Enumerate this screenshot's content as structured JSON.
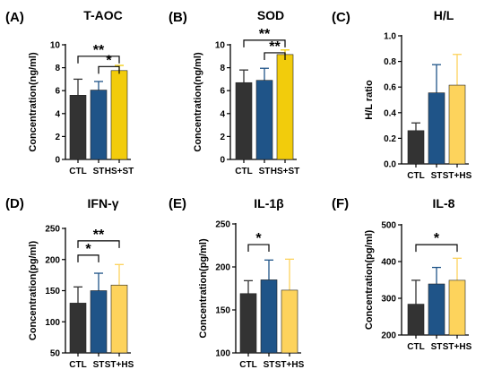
{
  "chart_data": [
    {
      "type": "bar",
      "panel": "(A)",
      "title": "T-AOC",
      "ylabel": "Concentration(ng/ml)",
      "categories": [
        "CTL",
        "ST",
        "HS+ST"
      ],
      "values": [
        5.6,
        6.05,
        7.75
      ],
      "errors": [
        1.4,
        0.75,
        0.45
      ],
      "colors": [
        "#333333",
        "#1f5488",
        "#f2cc0c"
      ],
      "ylim": [
        0,
        10
      ],
      "yticks": [
        0,
        2,
        4,
        6,
        8,
        10
      ],
      "significance": [
        {
          "from": 0,
          "to": 2,
          "y": 9.0,
          "label": "**"
        },
        {
          "from": 1,
          "to": 2,
          "y": 8.1,
          "label": "*"
        }
      ]
    },
    {
      "type": "bar",
      "panel": "(B)",
      "title": "SOD",
      "ylabel": "Concentration(ng/ml)",
      "categories": [
        "CTL",
        "ST",
        "HS+ST"
      ],
      "values": [
        6.7,
        6.9,
        9.15
      ],
      "errors": [
        1.1,
        1.05,
        0.4
      ],
      "colors": [
        "#333333",
        "#1f5488",
        "#f2cc0c"
      ],
      "ylim": [
        0,
        10
      ],
      "yticks": [
        0,
        2,
        4,
        6,
        8,
        10
      ],
      "significance": [
        {
          "from": 0,
          "to": 2,
          "y": 10.4,
          "label": "**"
        },
        {
          "from": 1,
          "to": 2,
          "y": 9.3,
          "label": "**"
        }
      ]
    },
    {
      "type": "bar",
      "panel": "(C)",
      "title": "H/L",
      "ylabel": "H/L ratio",
      "categories": [
        "CTL",
        "ST",
        "ST+HS"
      ],
      "values": [
        0.26,
        0.555,
        0.615
      ],
      "errors": [
        0.06,
        0.22,
        0.24
      ],
      "colors": [
        "#333333",
        "#1f5488",
        "#fdd35c"
      ],
      "ylim": [
        0,
        1.0
      ],
      "yticks": [
        0.0,
        0.2,
        0.4,
        0.6,
        0.8,
        1.0
      ],
      "significance": []
    },
    {
      "type": "bar",
      "panel": "(D)",
      "title": "IFN-γ",
      "ylabel": "Concentration(pg/ml)",
      "categories": [
        "CTL",
        "ST",
        "ST+HS"
      ],
      "values": [
        130,
        150,
        159
      ],
      "errors": [
        26,
        28,
        33
      ],
      "colors": [
        "#333333",
        "#1f5488",
        "#fdd35c"
      ],
      "ylim": [
        50,
        250
      ],
      "yticks": [
        50,
        100,
        150,
        200,
        250
      ],
      "significance": [
        {
          "from": 0,
          "to": 2,
          "y": 230,
          "label": "**"
        },
        {
          "from": 0,
          "to": 1,
          "y": 207,
          "label": "*"
        }
      ]
    },
    {
      "type": "bar",
      "panel": "(E)",
      "title": "IL-1β",
      "ylabel": "Concentration(pg/ml)",
      "categories": [
        "CTL",
        "ST",
        "ST+HS"
      ],
      "values": [
        169,
        185,
        173
      ],
      "errors": [
        15,
        23,
        36
      ],
      "colors": [
        "#333333",
        "#1f5488",
        "#fdd35c"
      ],
      "ylim": [
        100,
        250
      ],
      "yticks": [
        100,
        150,
        200,
        250
      ],
      "significance": [
        {
          "from": 0,
          "to": 1,
          "y": 226,
          "label": "*"
        }
      ]
    },
    {
      "type": "bar",
      "panel": "(F)",
      "title": "IL-8",
      "ylabel": "Concentration(pg/ml)",
      "categories": [
        "CTL",
        "ST",
        "ST+HS"
      ],
      "values": [
        284,
        339,
        349
      ],
      "errors": [
        65,
        45,
        60
      ],
      "colors": [
        "#333333",
        "#1f5488",
        "#fdd35c"
      ],
      "ylim": [
        200,
        500
      ],
      "yticks": [
        200,
        300,
        400,
        500
      ],
      "significance": [
        {
          "from": 0,
          "to": 2,
          "y": 446,
          "label": "*"
        }
      ]
    }
  ]
}
